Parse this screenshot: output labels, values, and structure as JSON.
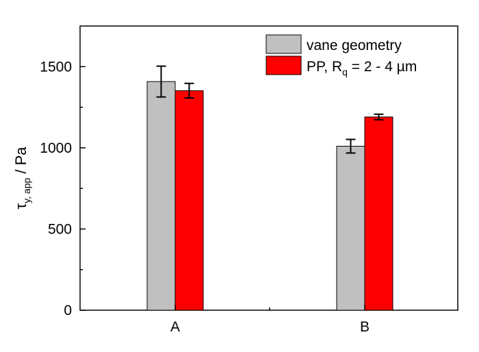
{
  "chart_data": {
    "type": "bar",
    "categories": [
      "A",
      "B"
    ],
    "series": [
      {
        "name": "vane geometry",
        "values": [
          1408,
          1010
        ],
        "errors": [
          95,
          42
        ],
        "color": "#c0c0c0"
      },
      {
        "name": "PP, R_q = 2 - 4 µm",
        "values": [
          1352,
          1190
        ],
        "errors": [
          45,
          17
        ],
        "color": "#ff0000"
      }
    ],
    "xlabel": "",
    "ylabel": "τy, app / Pa",
    "ylim": [
      0,
      1750
    ],
    "yticks": [
      0,
      500,
      1000,
      1500
    ],
    "legend_position": "top-right",
    "grid": false,
    "text": {
      "ylabel_main": "τ",
      "ylabel_sub": "y, app",
      "ylabel_unit": " / Pa",
      "legend_1": "vane geometry",
      "legend_2_prefix": "PP, R",
      "legend_2_sub": "q",
      "legend_2_suffix": " = 2 - 4 µm"
    }
  }
}
